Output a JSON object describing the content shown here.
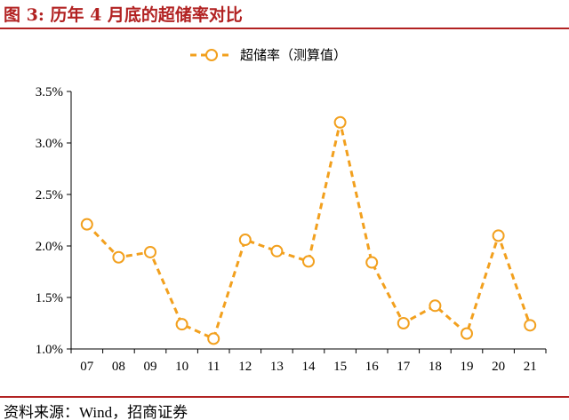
{
  "figure": {
    "title": "图 3: 历年 4 月底的超储率对比",
    "source": "资料来源：Wind，招商证券"
  },
  "colors": {
    "series": "#f2a01e",
    "title": "#b22222",
    "axis": "#000000"
  },
  "chart_data": {
    "type": "line",
    "categories": [
      "07",
      "08",
      "09",
      "10",
      "11",
      "12",
      "13",
      "14",
      "15",
      "16",
      "17",
      "18",
      "19",
      "20",
      "21"
    ],
    "series": [
      {
        "name": "超储率（测算值）",
        "values": [
          2.21,
          1.89,
          1.94,
          1.24,
          1.1,
          2.06,
          1.95,
          1.85,
          3.2,
          1.84,
          1.25,
          1.42,
          1.15,
          2.1,
          1.23
        ]
      }
    ],
    "y_ticks": [
      "1.0%",
      "1.5%",
      "2.0%",
      "2.5%",
      "3.0%",
      "3.5%"
    ],
    "ylim": [
      1.0,
      3.5
    ],
    "grid": false,
    "legend_position": "top-center",
    "line_style": "dashed",
    "marker": "open-circle"
  }
}
